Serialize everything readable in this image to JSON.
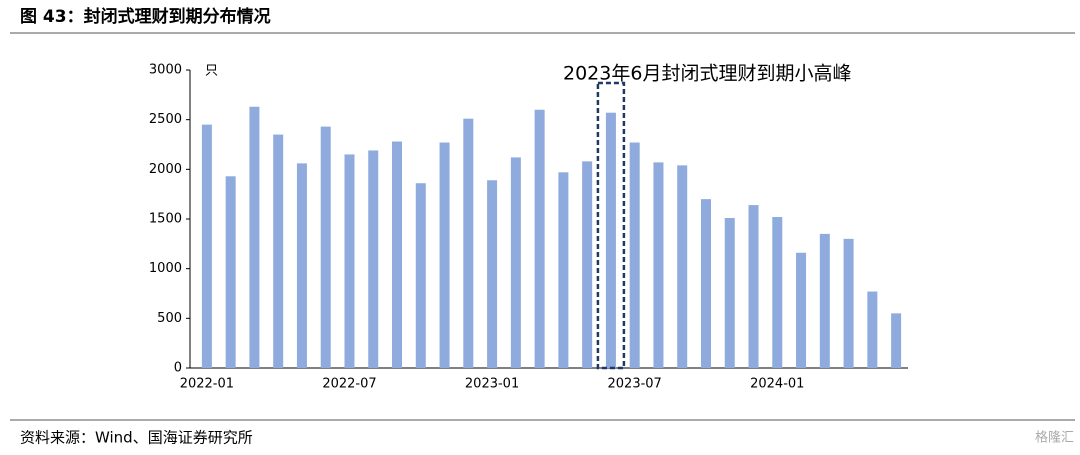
{
  "header": {
    "title": "图 43：封闭式理财到期分布情况"
  },
  "footer": {
    "source": "资料来源：Wind、国海证券研究所",
    "watermark": "格隆汇"
  },
  "chart_data": {
    "type": "bar",
    "y_unit": "只",
    "annotation": "2023年6月封闭式理财到期小高峰",
    "categories": [
      "2022-01",
      null,
      null,
      null,
      null,
      null,
      "2022-07",
      null,
      null,
      null,
      null,
      null,
      "2023-01",
      null,
      null,
      null,
      null,
      null,
      "2023-07",
      null,
      null,
      null,
      null,
      null,
      "2024-01",
      null,
      null,
      null,
      null,
      null
    ],
    "values": [
      2450,
      1930,
      2630,
      2350,
      2060,
      2430,
      2150,
      2190,
      2280,
      1860,
      2270,
      2510,
      1890,
      2120,
      2600,
      1970,
      2080,
      2570,
      2270,
      2070,
      2040,
      1700,
      1510,
      1640,
      1520,
      1160,
      1350,
      1300,
      770,
      550
    ],
    "color": "#8faadc",
    "ylim": [
      0,
      3000
    ],
    "yticks": [
      0,
      500,
      1000,
      1500,
      2000,
      2500,
      3000
    ]
  }
}
